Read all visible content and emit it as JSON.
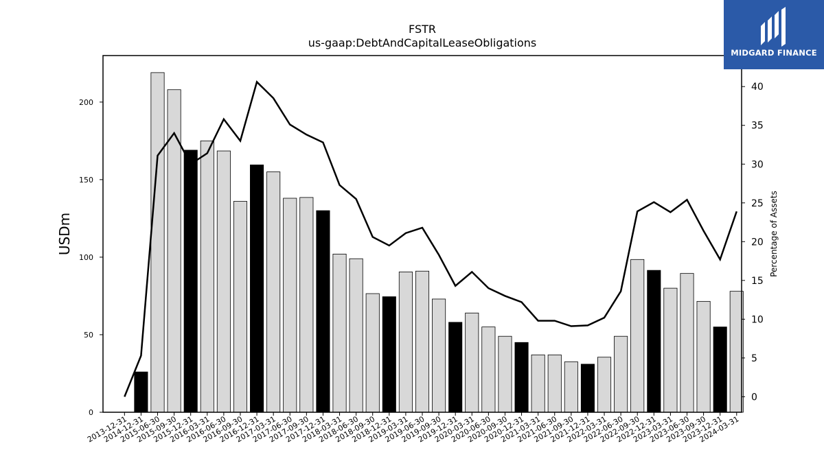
{
  "chart_data": {
    "type": "bar",
    "title": "FSTR",
    "subtitle": "us-gaap:DebtAndCapitalLeaseObligations",
    "ylabel": "USDm",
    "y2label": "Percentage of Assets",
    "ylim": [
      0,
      230
    ],
    "y2lim": [
      -2,
      44
    ],
    "yticks": [
      0,
      50,
      100,
      150,
      200
    ],
    "y2ticks": [
      0,
      5,
      10,
      15,
      20,
      25,
      30,
      35,
      40
    ],
    "categories": [
      "2013-12-31",
      "2014-12-31",
      "2015-06-30",
      "2015-09-30",
      "2015-12-31",
      "2016-03-31",
      "2016-06-30",
      "2016-09-30",
      "2016-12-31",
      "2017-03-31",
      "2017-06-30",
      "2017-09-30",
      "2017-12-31",
      "2018-03-31",
      "2018-06-30",
      "2018-09-30",
      "2018-12-31",
      "2019-03-31",
      "2019-06-30",
      "2019-09-30",
      "2019-12-31",
      "2020-03-31",
      "2020-06-30",
      "2020-09-30",
      "2020-12-31",
      "2021-03-31",
      "2021-06-30",
      "2021-09-30",
      "2021-12-31",
      "2022-03-31",
      "2022-06-30",
      "2022-09-30",
      "2022-12-31",
      "2023-03-31",
      "2023-06-30",
      "2023-09-30",
      "2023-12-31",
      "2024-03-31"
    ],
    "series": [
      {
        "kind": "bar",
        "values": [
          0,
          26,
          219,
          208,
          169,
          175,
          168.5,
          136,
          159.5,
          155,
          138,
          138.5,
          130,
          102,
          99,
          76.5,
          74.5,
          90.5,
          91,
          73,
          58,
          64,
          55,
          49,
          45,
          37,
          37,
          32.5,
          31,
          35.5,
          49,
          98.5,
          91.5,
          80,
          89.5,
          71.5,
          55,
          78
        ],
        "annual_flags": [
          true,
          true,
          false,
          false,
          true,
          false,
          false,
          false,
          true,
          false,
          false,
          false,
          true,
          false,
          false,
          false,
          true,
          false,
          false,
          false,
          true,
          false,
          false,
          false,
          true,
          false,
          false,
          false,
          true,
          false,
          false,
          false,
          true,
          false,
          false,
          false,
          true,
          false
        ]
      },
      {
        "kind": "line",
        "axis": "right",
        "values": [
          0,
          5.3,
          31.1,
          34.0,
          30.0,
          31.4,
          35.8,
          33.0,
          40.6,
          38.5,
          35.1,
          33.8,
          32.8,
          27.3,
          25.5,
          20.6,
          19.5,
          21.1,
          21.8,
          18.3,
          14.3,
          16.1,
          14.0,
          13.0,
          12.2,
          9.8,
          9.8,
          9.1,
          9.2,
          10.2,
          13.6,
          23.9,
          25.1,
          23.8,
          25.4,
          21.4,
          17.7,
          23.9
        ]
      }
    ],
    "colors": {
      "annual_bar": "#000000",
      "quarter_bar": "#d8d8d8",
      "line": "#000000"
    }
  },
  "logo": {
    "text": "MIDGARD FINANCE",
    "background": "#2b5aa8"
  }
}
